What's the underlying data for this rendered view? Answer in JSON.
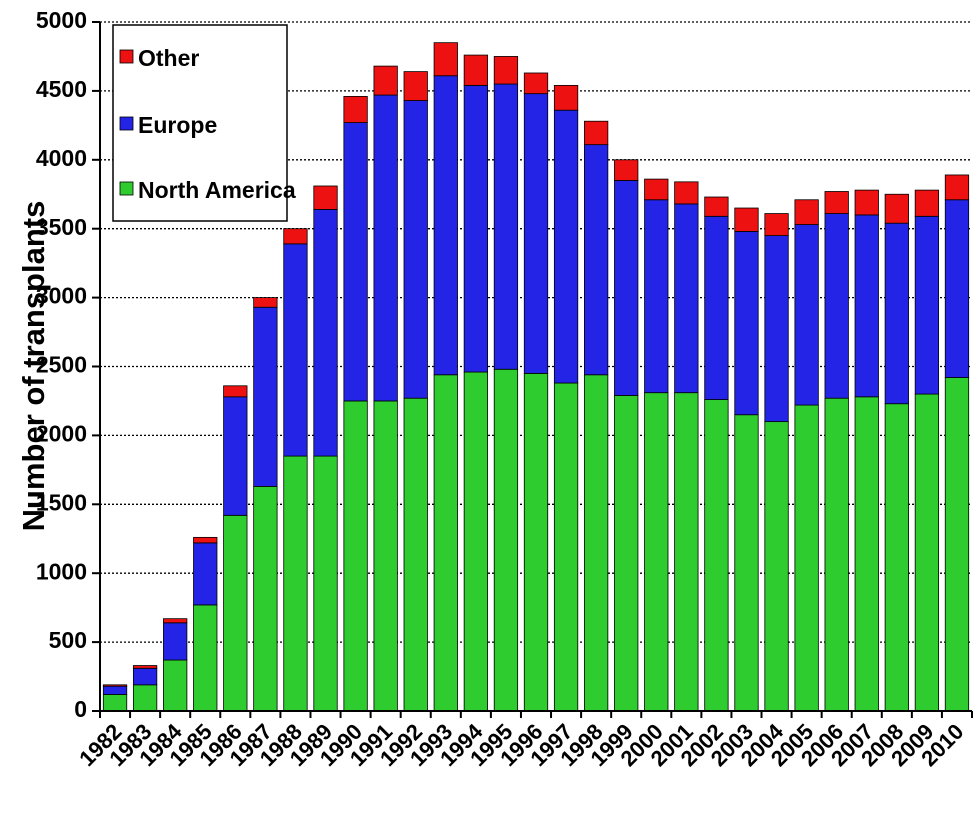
{
  "chart_data": {
    "type": "bar",
    "stacked": true,
    "title": "",
    "xlabel": "",
    "ylabel": "Number of transplants",
    "ylim": [
      0,
      5000
    ],
    "yticks": [
      0,
      500,
      1000,
      1500,
      2000,
      2500,
      3000,
      3500,
      4000,
      4500,
      5000
    ],
    "grid": true,
    "legend_position": "top-left",
    "categories": [
      "1982",
      "1983",
      "1984",
      "1985",
      "1986",
      "1987",
      "1988",
      "1989",
      "1990",
      "1991",
      "1992",
      "1993",
      "1994",
      "1995",
      "1996",
      "1997",
      "1998",
      "1999",
      "2000",
      "2001",
      "2002",
      "2003",
      "2004",
      "2005",
      "2006",
      "2007",
      "2008",
      "2009",
      "2010"
    ],
    "series": [
      {
        "name": "North America",
        "color": "#2ecc2e",
        "values": [
          120,
          190,
          370,
          770,
          1420,
          1630,
          1850,
          1850,
          2250,
          2250,
          2270,
          2440,
          2460,
          2480,
          2450,
          2380,
          2440,
          2290,
          2310,
          2310,
          2260,
          2150,
          2100,
          2220,
          2270,
          2280,
          2230,
          2300,
          2420
        ]
      },
      {
        "name": "Europe",
        "color": "#2424e6",
        "values": [
          60,
          120,
          270,
          450,
          860,
          1300,
          1540,
          1790,
          2020,
          2220,
          2160,
          2170,
          2080,
          2070,
          2030,
          1980,
          1670,
          1560,
          1400,
          1370,
          1330,
          1330,
          1350,
          1310,
          1340,
          1320,
          1310,
          1290,
          1290
        ]
      },
      {
        "name": "Other",
        "color": "#ee1111",
        "values": [
          10,
          20,
          30,
          40,
          80,
          70,
          110,
          170,
          190,
          210,
          210,
          240,
          220,
          200,
          150,
          180,
          170,
          150,
          150,
          160,
          140,
          170,
          160,
          180,
          160,
          180,
          210,
          190,
          180
        ]
      }
    ],
    "legend_order": [
      "Other",
      "Europe",
      "North America"
    ]
  }
}
